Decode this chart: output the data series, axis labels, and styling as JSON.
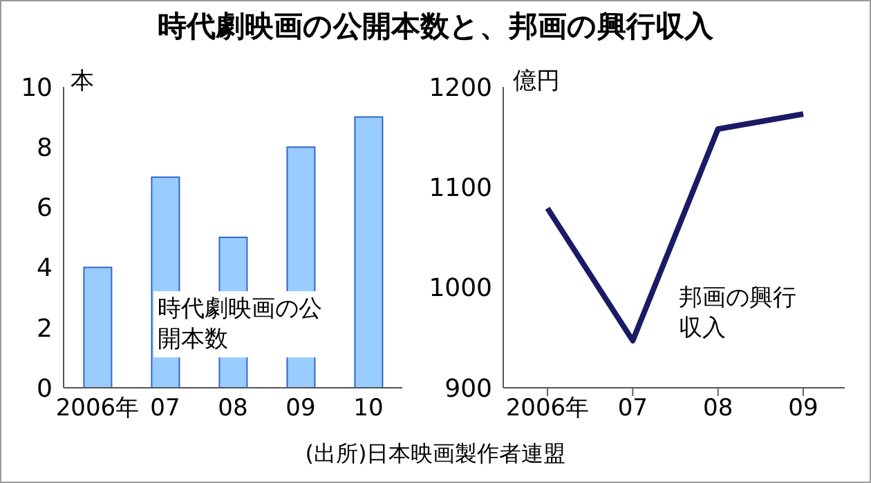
{
  "chart_data": [
    {
      "type": "bar",
      "title": "時代劇映画の公開本数と、邦画の興行収入",
      "ylabel": "本",
      "categories": [
        "2006年",
        "07",
        "08",
        "09",
        "10"
      ],
      "series": [
        {
          "name": "時代劇映画の公開本数",
          "color": "#99ccff",
          "values": [
            4,
            7,
            5,
            8,
            9
          ]
        }
      ],
      "ylim": [
        0,
        10
      ],
      "yticks": [
        0,
        2,
        4,
        6,
        8,
        10
      ],
      "annotations": [
        "(出所)日本映画製作者連盟"
      ]
    },
    {
      "type": "line",
      "ylabel": "億円",
      "categories": [
        "2006年",
        "07",
        "08",
        "09"
      ],
      "series": [
        {
          "name": "邦画の興行収入",
          "color": "#1a1a66",
          "values": [
            1079,
            947,
            1158,
            1173
          ]
        }
      ],
      "ylim": [
        900,
        1200
      ],
      "yticks": [
        900,
        1000,
        1100,
        1200
      ],
      "marker": "none",
      "line_style": "solid"
    }
  ]
}
